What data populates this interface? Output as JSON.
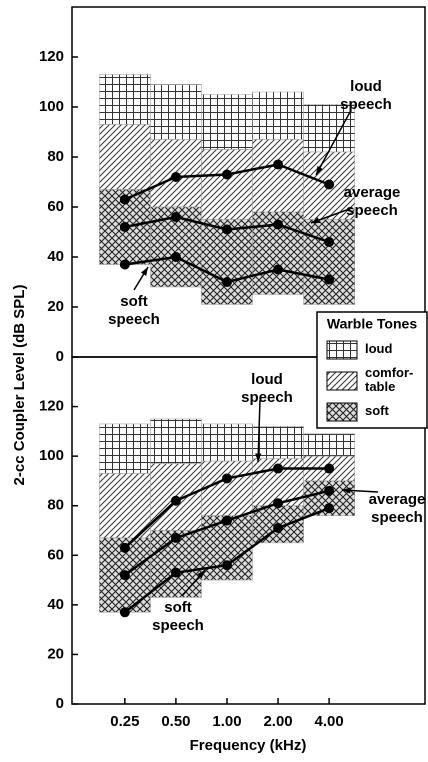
{
  "ylabel": "2-cc Coupler Level (dB SPL)",
  "xlabel": "Frequency (kHz)",
  "legend": {
    "title": "Warble Tones",
    "entries": [
      {
        "label": [
          "loud"
        ],
        "pattern": "grid"
      },
      {
        "label": [
          "comfor-",
          "table"
        ],
        "pattern": "diagonal"
      },
      {
        "label": [
          "soft"
        ],
        "pattern": "crosshatch"
      }
    ]
  },
  "chart_data": [
    {
      "type": "line",
      "xscale": "log",
      "xlim": [
        0.122,
        14.7
      ],
      "ylim": [
        0,
        140
      ],
      "yticks": [
        0,
        20,
        40,
        60,
        80,
        100,
        120
      ],
      "x": [
        0.25,
        0.5,
        1,
        2,
        4
      ],
      "color": "#000000",
      "series": [
        {
          "name": "loud speech",
          "values": [
            63,
            72,
            73,
            77,
            69
          ]
        },
        {
          "name": "average speech",
          "values": [
            52,
            56,
            51,
            53,
            46
          ]
        },
        {
          "name": "soft speech",
          "values": [
            37,
            40,
            30,
            35,
            31
          ]
        }
      ],
      "annotations": [
        {
          "text": [
            "loud",
            "speech"
          ]
        },
        {
          "text": [
            "average",
            "speech"
          ]
        },
        {
          "text": [
            "soft",
            "speech"
          ]
        }
      ],
      "warble": {
        "edges": [
          0.177,
          0.354,
          0.707,
          1.414,
          2.828,
          5.657
        ],
        "loud_top": [
          113,
          109,
          105,
          106,
          101
        ],
        "comfortable_top": [
          93,
          87,
          83,
          87,
          82
        ],
        "soft_top": [
          67,
          60,
          55,
          58,
          55
        ],
        "soft_bottom": [
          37,
          28,
          21,
          25,
          21
        ]
      }
    },
    {
      "type": "line",
      "xscale": "log",
      "xlim": [
        0.122,
        14.7
      ],
      "ylim": [
        0,
        140
      ],
      "yticks": [
        0,
        20,
        40,
        60,
        80,
        100,
        120
      ],
      "x": [
        0.25,
        0.5,
        1,
        2,
        4
      ],
      "xticks": [
        0.25,
        {
          "value": 0.5,
          "label": "0.50"
        },
        {
          "value": 1,
          "label": "1.00"
        },
        {
          "value": 2,
          "label": "2.00"
        },
        {
          "value": 4,
          "label": "4.00"
        }
      ],
      "color": "#000000",
      "series": [
        {
          "name": "loud speech",
          "values": [
            63,
            82,
            91,
            95,
            95
          ]
        },
        {
          "name": "average speech",
          "values": [
            52,
            67,
            74,
            81,
            86
          ]
        },
        {
          "name": "soft speech",
          "values": [
            37,
            53,
            56,
            71,
            79
          ]
        }
      ],
      "annotations": [
        {
          "text": [
            "loud",
            "speech"
          ]
        },
        {
          "text": [
            "average",
            "speech"
          ]
        },
        {
          "text": [
            "soft",
            "speech"
          ]
        }
      ],
      "warble": {
        "edges": [
          0.177,
          0.354,
          0.707,
          1.414,
          2.828,
          5.657
        ],
        "loud_top": [
          113,
          115,
          113,
          112,
          109
        ],
        "comfortable_top": [
          93,
          97,
          98,
          99,
          100
        ],
        "soft_top": [
          67,
          70,
          76,
          80,
          90
        ],
        "soft_bottom": [
          37,
          43,
          50,
          65,
          76
        ]
      }
    }
  ]
}
